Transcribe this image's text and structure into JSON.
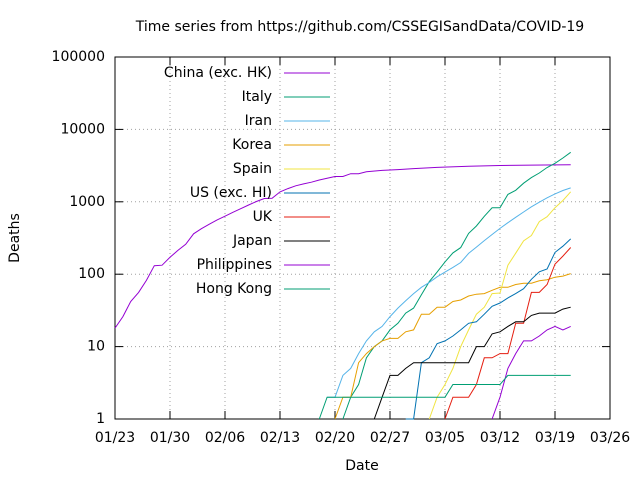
{
  "chart_data": {
    "type": "line",
    "title": "Time series from https://github.com/CSSEGISandData/COVID-19",
    "xlabel": "Date",
    "ylabel": "Deaths",
    "log_y": true,
    "grid": true,
    "legend": "top-left",
    "xlim": [
      "01/23",
      "03/26"
    ],
    "xticks": [
      "01/23",
      "01/30",
      "02/06",
      "02/13",
      "02/20",
      "02/27",
      "03/05",
      "03/12",
      "03/19",
      "03/26"
    ],
    "ylim": [
      1,
      100000
    ],
    "yticks": [
      1,
      10,
      100,
      1000,
      10000,
      100000
    ],
    "series": [
      {
        "name": "China (exc. HK)",
        "color": "#9400d3",
        "x": [
          "01/23",
          "01/24",
          "01/25",
          "01/26",
          "01/27",
          "01/28",
          "01/29",
          "01/30",
          "01/31",
          "02/01",
          "02/02",
          "02/03",
          "02/04",
          "02/05",
          "02/06",
          "02/07",
          "02/08",
          "02/09",
          "02/10",
          "02/11",
          "02/12",
          "02/13",
          "02/14",
          "02/15",
          "02/16",
          "02/17",
          "02/18",
          "02/19",
          "02/20",
          "02/21",
          "02/22",
          "02/23",
          "02/24",
          "02/26",
          "02/28",
          "03/01",
          "03/04",
          "03/08",
          "03/12",
          "03/16",
          "03/21"
        ],
        "values": [
          18,
          26,
          42,
          56,
          82,
          131,
          133,
          171,
          213,
          259,
          361,
          425,
          490,
          562,
          632,
          717,
          804,
          904,
          1011,
          1111,
          1116,
          1368,
          1520,
          1662,
          1765,
          1863,
          2002,
          2114,
          2236,
          2236,
          2441,
          2443,
          2593,
          2715,
          2788,
          2870,
          2984,
          3097,
          3169,
          3213,
          3255
        ]
      },
      {
        "name": "Italy",
        "color": "#009e73",
        "x": [
          "02/21",
          "02/22",
          "02/23",
          "02/24",
          "02/25",
          "02/26",
          "02/27",
          "02/28",
          "02/29",
          "03/01",
          "03/02",
          "03/03",
          "03/04",
          "03/05",
          "03/06",
          "03/07",
          "03/08",
          "03/09",
          "03/10",
          "03/11",
          "03/12",
          "03/13",
          "03/14",
          "03/15",
          "03/16",
          "03/17",
          "03/18",
          "03/19",
          "03/20",
          "03/21"
        ],
        "values": [
          1,
          2,
          3,
          7,
          10,
          12,
          17,
          21,
          29,
          34,
          52,
          79,
          107,
          148,
          197,
          233,
          366,
          463,
          631,
          827,
          827,
          1266,
          1441,
          1809,
          2158,
          2503,
          2978,
          3405,
          4032,
          4825
        ]
      },
      {
        "name": "Iran",
        "color": "#56b4e9",
        "x": [
          "02/19",
          "02/20",
          "02/21",
          "02/22",
          "02/23",
          "02/24",
          "02/25",
          "02/26",
          "02/27",
          "02/28",
          "02/29",
          "03/01",
          "03/02",
          "03/03",
          "03/04",
          "03/05",
          "03/06",
          "03/07",
          "03/08",
          "03/09",
          "03/10",
          "03/11",
          "03/12",
          "03/13",
          "03/14",
          "03/15",
          "03/16",
          "03/17",
          "03/18",
          "03/19",
          "03/20",
          "03/21"
        ],
        "values": [
          2,
          2,
          4,
          5,
          8,
          12,
          16,
          19,
          26,
          34,
          43,
          54,
          66,
          77,
          92,
          107,
          124,
          145,
          194,
          237,
          291,
          354,
          429,
          514,
          611,
          724,
          853,
          988,
          1135,
          1284,
          1433,
          1556
        ]
      },
      {
        "name": "Korea",
        "color": "#e69f00",
        "x": [
          "02/20",
          "02/21",
          "02/22",
          "02/23",
          "02/24",
          "02/25",
          "02/26",
          "02/27",
          "02/28",
          "02/29",
          "03/01",
          "03/02",
          "03/03",
          "03/04",
          "03/05",
          "03/06",
          "03/07",
          "03/08",
          "03/09",
          "03/10",
          "03/11",
          "03/12",
          "03/13",
          "03/14",
          "03/15",
          "03/16",
          "03/17",
          "03/18",
          "03/19",
          "03/20",
          "03/21"
        ],
        "values": [
          1,
          2,
          2,
          6,
          8,
          10,
          12,
          13,
          13,
          16,
          17,
          28,
          28,
          35,
          35,
          42,
          44,
          50,
          53,
          54,
          60,
          66,
          66,
          72,
          75,
          75,
          81,
          84,
          91,
          94,
          102
        ]
      },
      {
        "name": "Spain",
        "color": "#f0e442",
        "x": [
          "03/03",
          "03/04",
          "03/05",
          "03/06",
          "03/07",
          "03/08",
          "03/09",
          "03/10",
          "03/11",
          "03/12",
          "03/13",
          "03/14",
          "03/15",
          "03/16",
          "03/17",
          "03/18",
          "03/19",
          "03/20",
          "03/21"
        ],
        "values": [
          1,
          2,
          3,
          5,
          10,
          17,
          28,
          35,
          54,
          55,
          133,
          195,
          289,
          342,
          533,
          623,
          830,
          1043,
          1375
        ]
      },
      {
        "name": "US (exc. HI)",
        "color": "#0072b2",
        "x": [
          "02/29",
          "03/01",
          "03/02",
          "03/03",
          "03/04",
          "03/05",
          "03/06",
          "03/07",
          "03/08",
          "03/09",
          "03/10",
          "03/11",
          "03/12",
          "03/13",
          "03/14",
          "03/15",
          "03/16",
          "03/17",
          "03/18",
          "03/19",
          "03/20",
          "03/21"
        ],
        "values": [
          1,
          1,
          6,
          7,
          11,
          12,
          14,
          17,
          21,
          22,
          28,
          36,
          40,
          47,
          54,
          63,
          85,
          108,
          118,
          200,
          244,
          307
        ]
      },
      {
        "name": "UK",
        "color": "#e51e10",
        "x": [
          "03/05",
          "03/06",
          "03/07",
          "03/08",
          "03/09",
          "03/10",
          "03/11",
          "03/12",
          "03/13",
          "03/14",
          "03/15",
          "03/16",
          "03/17",
          "03/18",
          "03/19",
          "03/20",
          "03/21"
        ],
        "values": [
          1,
          2,
          2,
          2,
          3,
          7,
          7,
          8,
          8,
          21,
          21,
          56,
          56,
          72,
          138,
          178,
          234
        ]
      },
      {
        "name": "Japan",
        "color": "#000000",
        "x": [
          "02/25",
          "02/26",
          "02/27",
          "02/28",
          "02/29",
          "03/01",
          "03/02",
          "03/03",
          "03/04",
          "03/05",
          "03/06",
          "03/07",
          "03/08",
          "03/09",
          "03/10",
          "03/11",
          "03/12",
          "03/13",
          "03/14",
          "03/15",
          "03/16",
          "03/17",
          "03/18",
          "03/19",
          "03/20",
          "03/21"
        ],
        "values": [
          1,
          2,
          4,
          4,
          5,
          6,
          6,
          6,
          6,
          6,
          6,
          6,
          6,
          10,
          10,
          15,
          16,
          19,
          22,
          22,
          27,
          29,
          29,
          29,
          33,
          35
        ]
      },
      {
        "name": "Philippines",
        "color": "#9400d3",
        "x": [
          "03/11",
          "03/12",
          "03/13",
          "03/14",
          "03/15",
          "03/16",
          "03/17",
          "03/18",
          "03/19",
          "03/20",
          "03/21"
        ],
        "values": [
          1,
          2,
          5,
          8,
          12,
          12,
          14,
          17,
          19,
          17,
          19
        ]
      },
      {
        "name": "Hong Kong",
        "color": "#009e73",
        "x": [
          "02/18",
          "02/19",
          "03/05",
          "03/06",
          "03/12",
          "03/13",
          "03/21"
        ],
        "values": [
          1,
          2,
          2,
          3,
          3,
          4,
          4
        ]
      }
    ]
  }
}
